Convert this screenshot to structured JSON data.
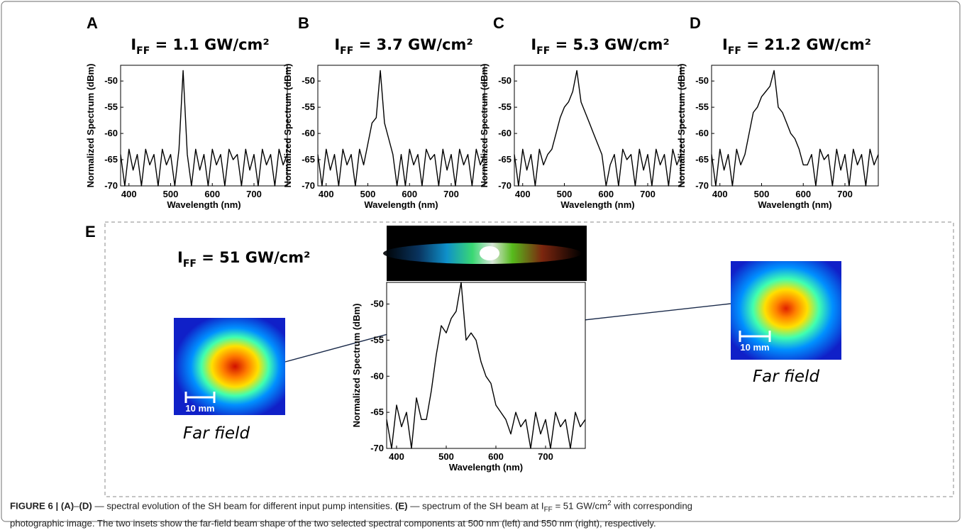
{
  "chart_data": [
    {
      "type": "line",
      "panel": "A",
      "title_parts": [
        "I",
        "FF",
        " = 1.1 GW/cm²"
      ],
      "xlabel": "Wavelength (nm)",
      "ylabel": "Normalized Spectrum (dBm)",
      "xlim": [
        380,
        780
      ],
      "ylim": [
        -70,
        -47
      ],
      "xticks": [
        400,
        500,
        600,
        700
      ],
      "yticks": [
        -70,
        -65,
        -60,
        -55,
        -50
      ],
      "color": "#000000",
      "x": [
        380,
        390,
        400,
        410,
        420,
        430,
        440,
        450,
        460,
        470,
        480,
        490,
        500,
        510,
        520,
        530,
        540,
        550,
        560,
        570,
        580,
        590,
        600,
        610,
        620,
        630,
        640,
        650,
        660,
        670,
        680,
        690,
        700,
        710,
        720,
        730,
        740,
        750,
        760,
        770,
        780
      ],
      "values": [
        -64,
        -70,
        -63,
        -67,
        -64,
        -70,
        -63,
        -66,
        -64,
        -70,
        -63,
        -66,
        -64,
        -70,
        -63,
        -48,
        -64,
        -70,
        -63,
        -67,
        -64,
        -70,
        -63,
        -66,
        -64,
        -70,
        -63,
        -65,
        -64,
        -70,
        -63,
        -67,
        -64,
        -70,
        -63,
        -66,
        -64,
        -70,
        -63,
        -66,
        -64
      ]
    },
    {
      "type": "line",
      "panel": "B",
      "title_parts": [
        "I",
        "FF",
        " = 3.7 GW/cm²"
      ],
      "xlabel": "Wavelength (nm)",
      "ylabel": "Normalized Spectrum (dBm)",
      "xlim": [
        380,
        780
      ],
      "ylim": [
        -70,
        -47
      ],
      "xticks": [
        400,
        500,
        600,
        700
      ],
      "yticks": [
        -70,
        -65,
        -60,
        -55,
        -50
      ],
      "color": "#000000",
      "x": [
        380,
        390,
        400,
        410,
        420,
        430,
        440,
        450,
        460,
        470,
        480,
        490,
        500,
        510,
        520,
        530,
        540,
        550,
        560,
        570,
        580,
        590,
        600,
        610,
        620,
        630,
        640,
        650,
        660,
        670,
        680,
        690,
        700,
        710,
        720,
        730,
        740,
        750,
        760,
        770,
        780
      ],
      "values": [
        -64,
        -70,
        -63,
        -67,
        -64,
        -70,
        -63,
        -66,
        -64,
        -70,
        -63,
        -66,
        -62,
        -58,
        -57,
        -48,
        -58,
        -61,
        -64,
        -70,
        -64,
        -70,
        -63,
        -66,
        -64,
        -70,
        -63,
        -65,
        -64,
        -70,
        -63,
        -67,
        -64,
        -70,
        -63,
        -66,
        -64,
        -70,
        -63,
        -66,
        -64
      ]
    },
    {
      "type": "line",
      "panel": "C",
      "title_parts": [
        "I",
        "FF",
        " = 5.3 GW/cm²"
      ],
      "xlabel": "Wavelength (nm)",
      "ylabel": "Normalized Spectrum (dBm)",
      "xlim": [
        380,
        780
      ],
      "ylim": [
        -70,
        -47
      ],
      "xticks": [
        400,
        500,
        600,
        700
      ],
      "yticks": [
        -70,
        -65,
        -60,
        -55,
        -50
      ],
      "color": "#000000",
      "x": [
        380,
        390,
        400,
        410,
        420,
        430,
        440,
        450,
        460,
        470,
        480,
        490,
        500,
        510,
        520,
        530,
        540,
        550,
        560,
        570,
        580,
        590,
        600,
        610,
        620,
        630,
        640,
        650,
        660,
        670,
        680,
        690,
        700,
        710,
        720,
        730,
        740,
        750,
        760,
        770,
        780
      ],
      "values": [
        -64,
        -70,
        -63,
        -67,
        -64,
        -70,
        -63,
        -66,
        -64,
        -63,
        -60,
        -57,
        -55,
        -54,
        -52,
        -48,
        -54,
        -56,
        -58,
        -60,
        -62,
        -64,
        -70,
        -66,
        -64,
        -70,
        -63,
        -65,
        -64,
        -70,
        -63,
        -67,
        -64,
        -70,
        -63,
        -66,
        -64,
        -70,
        -63,
        -66,
        -64
      ]
    },
    {
      "type": "line",
      "panel": "D",
      "title_parts": [
        "I",
        "FF",
        " = 21.2 GW/cm²"
      ],
      "xlabel": "Wavelength (nm)",
      "ylabel": "Normalized Spectrum (dBm)",
      "xlim": [
        380,
        780
      ],
      "ylim": [
        -70,
        -47
      ],
      "xticks": [
        400,
        500,
        600,
        700
      ],
      "yticks": [
        -70,
        -65,
        -60,
        -55,
        -50
      ],
      "color": "#000000",
      "x": [
        380,
        390,
        400,
        410,
        420,
        430,
        440,
        450,
        460,
        470,
        480,
        490,
        500,
        510,
        520,
        530,
        540,
        550,
        560,
        570,
        580,
        590,
        600,
        610,
        620,
        630,
        640,
        650,
        660,
        670,
        680,
        690,
        700,
        710,
        720,
        730,
        740,
        750,
        760,
        770,
        780
      ],
      "values": [
        -64,
        -70,
        -63,
        -67,
        -64,
        -70,
        -63,
        -66,
        -64,
        -60,
        -56,
        -55,
        -53,
        -52,
        -51,
        -48,
        -55,
        -56,
        -58,
        -60,
        -61,
        -63,
        -66,
        -66,
        -64,
        -70,
        -63,
        -65,
        -64,
        -70,
        -63,
        -67,
        -64,
        -70,
        -63,
        -66,
        -64,
        -70,
        -63,
        -66,
        -64
      ]
    },
    {
      "type": "line",
      "panel": "E",
      "title_parts": [
        "I",
        "FF",
        " = 51 GW/cm²"
      ],
      "xlabel": "Wavelength (nm)",
      "ylabel": "Normalized Spectrum (dBm)",
      "xlim": [
        380,
        780
      ],
      "ylim": [
        -70,
        -47
      ],
      "xticks": [
        400,
        500,
        600,
        700
      ],
      "yticks": [
        -70,
        -65,
        -60,
        -55,
        -50
      ],
      "color": "#000000",
      "x": [
        380,
        390,
        400,
        410,
        420,
        430,
        440,
        450,
        460,
        470,
        480,
        490,
        500,
        510,
        520,
        530,
        540,
        550,
        560,
        570,
        580,
        590,
        600,
        610,
        620,
        630,
        640,
        650,
        660,
        670,
        680,
        690,
        700,
        710,
        720,
        730,
        740,
        750,
        760,
        770,
        780
      ],
      "values": [
        -66,
        -70,
        -64,
        -67,
        -65,
        -70,
        -63,
        -66,
        -66,
        -62,
        -57,
        -53,
        -54,
        -52,
        -51,
        -47,
        -55,
        -54,
        -55,
        -58,
        -60,
        -61,
        -64,
        -65,
        -66,
        -68,
        -65,
        -67,
        -66,
        -70,
        -65,
        -68,
        -66,
        -70,
        -65,
        -67,
        -66,
        -70,
        -65,
        -67,
        -66
      ],
      "insets": [
        {
          "scale": "10 mm",
          "label": "Far field"
        },
        {
          "scale": "10 mm",
          "label": "Far field"
        }
      ]
    }
  ],
  "caption": {
    "lines": [
      [
        "FIGURE 6 | ",
        "(A)",
        "–",
        "(D)",
        " — spectral evolution of the SH beam for different input pump intensities. ",
        "(E)",
        " — spectrum of the SH beam at I",
        "FF",
        " = 51 GW/cm",
        "2",
        " with corresponding"
      ],
      [
        "photographic image. The two insets show the far-field beam shape of the two selected spectral components at 500 nm (left) and 550 nm (right), respectively."
      ]
    ]
  }
}
